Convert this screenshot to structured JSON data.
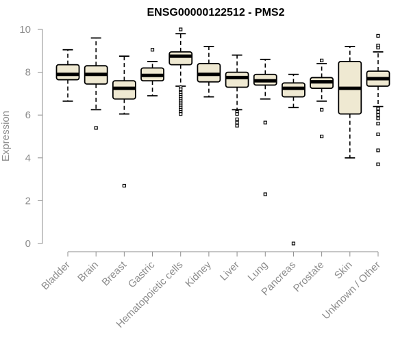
{
  "chart_data": {
    "type": "boxplot",
    "title": "ENSG00000122512 - PMS2",
    "ylabel": "Expression",
    "xlabel": "",
    "ylim": [
      0,
      10
    ],
    "yticks": [
      0,
      2,
      4,
      6,
      8,
      10
    ],
    "box_fill": "#efe9d2",
    "categories": [
      "Bladder",
      "Brain",
      "Breast",
      "Gastric",
      "Hematopoietic cells",
      "Kidney",
      "Liver",
      "Lung",
      "Pancreas",
      "Prostate",
      "Skin",
      "Unknown / Other"
    ],
    "boxes": [
      {
        "whisker_low": 6.65,
        "q1": 7.65,
        "median": 7.9,
        "q3": 8.35,
        "whisker_high": 9.05,
        "outliers": []
      },
      {
        "whisker_low": 6.25,
        "q1": 7.45,
        "median": 7.9,
        "q3": 8.3,
        "whisker_high": 9.6,
        "outliers": [
          5.4
        ]
      },
      {
        "whisker_low": 6.05,
        "q1": 6.75,
        "median": 7.25,
        "q3": 7.6,
        "whisker_high": 8.75,
        "outliers": [
          2.7
        ]
      },
      {
        "whisker_low": 6.9,
        "q1": 7.6,
        "median": 7.85,
        "q3": 8.2,
        "whisker_high": 8.5,
        "outliers": [
          9.05
        ]
      },
      {
        "whisker_low": 7.35,
        "q1": 8.35,
        "median": 8.75,
        "q3": 8.95,
        "whisker_high": 9.8,
        "outliers": [
          10.0,
          7.3,
          7.2,
          7.05,
          6.95,
          6.85,
          6.75,
          6.65,
          6.55,
          6.45,
          6.35,
          6.25,
          6.15,
          6.05
        ]
      },
      {
        "whisker_low": 6.85,
        "q1": 7.55,
        "median": 7.9,
        "q3": 8.4,
        "whisker_high": 9.2,
        "outliers": []
      },
      {
        "whisker_low": 6.25,
        "q1": 7.3,
        "median": 7.75,
        "q3": 8.0,
        "whisker_high": 8.8,
        "outliers": [
          6.15,
          6.05,
          5.8,
          5.65,
          5.5
        ]
      },
      {
        "whisker_low": 6.75,
        "q1": 7.4,
        "median": 7.6,
        "q3": 7.9,
        "whisker_high": 8.6,
        "outliers": [
          5.65,
          2.3
        ]
      },
      {
        "whisker_low": 6.35,
        "q1": 6.85,
        "median": 7.25,
        "q3": 7.5,
        "whisker_high": 7.9,
        "outliers": [
          0.0
        ]
      },
      {
        "whisker_low": 6.65,
        "q1": 7.25,
        "median": 7.55,
        "q3": 7.75,
        "whisker_high": 8.4,
        "outliers": [
          8.55,
          6.25,
          5.0
        ]
      },
      {
        "whisker_low": 4.0,
        "q1": 6.05,
        "median": 7.25,
        "q3": 8.5,
        "whisker_high": 9.2,
        "outliers": []
      },
      {
        "whisker_low": 6.4,
        "q1": 7.35,
        "median": 7.7,
        "q3": 8.05,
        "whisker_high": 8.95,
        "outliers": [
          9.7,
          9.25,
          9.15,
          6.3,
          6.15,
          6.0,
          5.85,
          5.6,
          5.1,
          4.35,
          3.7
        ]
      }
    ]
  }
}
